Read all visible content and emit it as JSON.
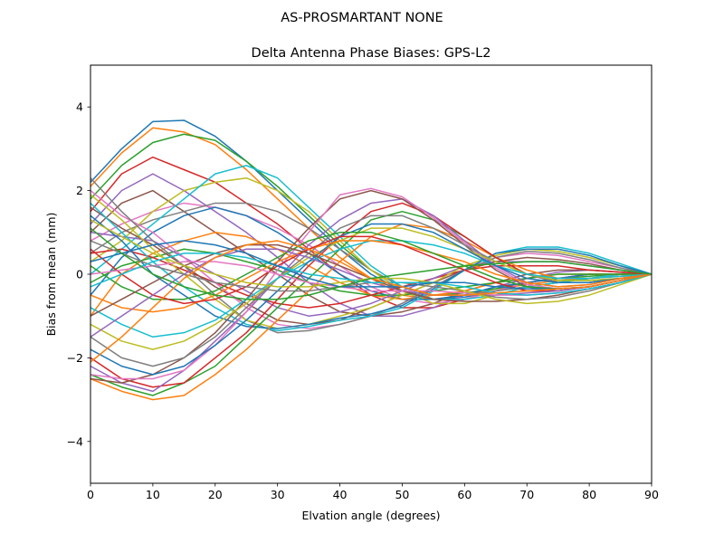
{
  "suptitle": "AS-PROSMARTANT  NONE",
  "chart_data": {
    "type": "line",
    "title": "Delta Antenna Phase Biases: GPS-L2",
    "xlabel": "Elvation angle (degrees)",
    "ylabel": "Bias from mean (mm)",
    "xlim": [
      0,
      90
    ],
    "ylim": [
      -5,
      5
    ],
    "xticks": [
      0,
      10,
      20,
      30,
      40,
      50,
      60,
      70,
      80,
      90
    ],
    "yticks": [
      -4,
      -2,
      0,
      2,
      4
    ],
    "grid": false,
    "legend": "none",
    "x": [
      0,
      5,
      10,
      15,
      20,
      25,
      30,
      35,
      40,
      45,
      50,
      55,
      60,
      65,
      70,
      75,
      80,
      85,
      90
    ],
    "series": [
      {
        "values": [
          2.2,
          3.0,
          3.65,
          3.68,
          3.3,
          2.7,
          2.0,
          1.3,
          0.6,
          0.0,
          -0.4,
          -0.6,
          -0.55,
          -0.4,
          -0.3,
          -0.2,
          -0.1,
          -0.05,
          0
        ]
      },
      {
        "values": [
          2.1,
          2.9,
          3.5,
          3.4,
          3.1,
          2.5,
          1.8,
          1.1,
          0.4,
          -0.1,
          -0.5,
          -0.6,
          -0.5,
          -0.35,
          -0.25,
          -0.15,
          -0.1,
          -0.05,
          0
        ]
      },
      {
        "values": [
          1.8,
          2.6,
          3.15,
          3.35,
          3.2,
          2.7,
          2.1,
          1.4,
          0.7,
          0.1,
          -0.3,
          -0.5,
          -0.45,
          -0.35,
          -0.2,
          -0.1,
          -0.05,
          0,
          0
        ]
      },
      {
        "values": [
          1.5,
          2.4,
          2.8,
          2.5,
          2.2,
          1.7,
          1.2,
          0.6,
          0.0,
          -0.5,
          -0.8,
          -0.8,
          -0.6,
          -0.4,
          -0.2,
          -0.1,
          0.0,
          0.0,
          0
        ]
      },
      {
        "values": [
          1.2,
          2.0,
          2.4,
          2.0,
          1.5,
          1.0,
          0.4,
          -0.2,
          -0.7,
          -1.0,
          -1.0,
          -0.8,
          -0.5,
          -0.3,
          -0.1,
          0.05,
          0.1,
          0.05,
          0
        ]
      },
      {
        "values": [
          1.0,
          1.7,
          2.0,
          1.5,
          1.0,
          0.5,
          0.0,
          -0.5,
          -0.9,
          -1.0,
          -0.9,
          -0.7,
          -0.4,
          -0.2,
          0.0,
          0.1,
          0.1,
          0.05,
          0
        ]
      },
      {
        "values": [
          0.8,
          1.2,
          1.5,
          1.7,
          1.6,
          1.4,
          1.1,
          0.7,
          0.2,
          -0.3,
          -0.6,
          -0.7,
          -0.6,
          -0.4,
          -0.2,
          -0.1,
          0.0,
          0.0,
          0
        ]
      },
      {
        "values": [
          0.5,
          1.0,
          1.3,
          1.5,
          1.7,
          1.7,
          1.5,
          1.1,
          0.6,
          0.1,
          -0.3,
          -0.5,
          -0.5,
          -0.4,
          -0.3,
          -0.2,
          -0.1,
          0.0,
          0
        ]
      },
      {
        "values": [
          0.3,
          0.8,
          1.5,
          2.0,
          2.2,
          2.3,
          2.0,
          1.5,
          0.8,
          0.1,
          -0.4,
          -0.7,
          -0.7,
          -0.5,
          -0.3,
          -0.2,
          -0.1,
          0.0,
          0
        ]
      },
      {
        "values": [
          0.0,
          0.6,
          1.2,
          1.8,
          2.4,
          2.6,
          2.3,
          1.6,
          0.9,
          0.2,
          -0.3,
          -0.6,
          -0.6,
          -0.5,
          -0.3,
          -0.2,
          -0.1,
          0.0,
          0
        ]
      },
      {
        "values": [
          -0.5,
          0.4,
          1.0,
          1.4,
          1.6,
          1.4,
          1.0,
          0.5,
          0.0,
          -0.4,
          -0.6,
          -0.6,
          -0.5,
          -0.3,
          -0.2,
          -0.1,
          0.0,
          0.0,
          0
        ]
      },
      {
        "values": [
          -1.0,
          0.0,
          0.5,
          0.8,
          1.0,
          0.9,
          0.6,
          0.2,
          -0.2,
          -0.5,
          -0.6,
          -0.5,
          -0.4,
          -0.2,
          -0.1,
          0.0,
          0.0,
          0.0,
          0
        ]
      },
      {
        "values": [
          -0.2,
          0.2,
          0.4,
          0.6,
          0.5,
          0.3,
          0.1,
          -0.2,
          -0.4,
          -0.5,
          -0.5,
          -0.4,
          -0.3,
          -0.2,
          -0.1,
          0.0,
          0.0,
          0.0,
          0
        ]
      },
      {
        "values": [
          0.5,
          0.6,
          0.4,
          0.1,
          -0.2,
          -0.5,
          -0.7,
          -0.8,
          -0.7,
          -0.5,
          -0.3,
          -0.1,
          0.1,
          0.2,
          0.2,
          0.2,
          0.1,
          0.05,
          0
        ]
      },
      {
        "values": [
          1.0,
          0.9,
          0.8,
          0.4,
          0.0,
          -0.4,
          -0.8,
          -1.0,
          -0.9,
          -0.7,
          -0.4,
          -0.1,
          0.2,
          0.3,
          0.3,
          0.3,
          0.2,
          0.1,
          0
        ]
      },
      {
        "values": [
          1.6,
          1.1,
          0.7,
          0.2,
          -0.3,
          -0.7,
          -1.1,
          -1.2,
          -1.1,
          -0.8,
          -0.5,
          -0.2,
          0.1,
          0.3,
          0.4,
          0.35,
          0.25,
          0.1,
          0
        ]
      },
      {
        "values": [
          2.0,
          1.4,
          1.0,
          0.4,
          -0.2,
          -0.8,
          -1.2,
          -1.3,
          -1.2,
          -1.0,
          -0.7,
          -0.3,
          0.1,
          0.4,
          0.5,
          0.45,
          0.3,
          0.15,
          0
        ]
      },
      {
        "values": [
          2.3,
          1.5,
          0.8,
          0.2,
          -0.5,
          -1.1,
          -1.4,
          -1.35,
          -1.2,
          -1.0,
          -0.7,
          -0.3,
          0.1,
          0.4,
          0.55,
          0.5,
          0.35,
          0.15,
          0
        ]
      },
      {
        "values": [
          1.9,
          1.3,
          0.6,
          0.0,
          -0.6,
          -1.1,
          -1.3,
          -1.2,
          -1.0,
          -0.8,
          -0.5,
          -0.2,
          0.2,
          0.45,
          0.6,
          0.55,
          0.4,
          0.2,
          0
        ]
      },
      {
        "values": [
          1.7,
          1.0,
          0.3,
          -0.3,
          -0.8,
          -1.2,
          -1.35,
          -1.25,
          -1.1,
          -1.0,
          -0.8,
          -0.4,
          0.1,
          0.5,
          0.65,
          0.65,
          0.5,
          0.25,
          0
        ]
      },
      {
        "values": [
          1.4,
          0.8,
          0.0,
          -0.5,
          -1.0,
          -1.25,
          -1.3,
          -1.2,
          -1.05,
          -0.95,
          -0.75,
          -0.35,
          0.1,
          0.5,
          0.6,
          0.6,
          0.45,
          0.2,
          0
        ]
      },
      {
        "values": [
          -2.5,
          -2.8,
          -3.0,
          -2.9,
          -2.4,
          -1.8,
          -1.1,
          -0.4,
          0.3,
          0.9,
          1.2,
          1.1,
          0.8,
          0.4,
          0.1,
          -0.1,
          -0.1,
          -0.05,
          0
        ]
      },
      {
        "values": [
          -2.4,
          -2.7,
          -2.9,
          -2.6,
          -2.2,
          -1.5,
          -0.8,
          -0.1,
          0.6,
          1.3,
          1.5,
          1.3,
          0.9,
          0.4,
          0.0,
          -0.15,
          -0.15,
          -0.1,
          0
        ]
      },
      {
        "values": [
          -2.0,
          -2.5,
          -2.7,
          -2.6,
          -2.0,
          -1.4,
          -0.6,
          0.2,
          0.9,
          1.5,
          1.7,
          1.4,
          0.9,
          0.4,
          0.0,
          -0.2,
          -0.2,
          -0.1,
          0
        ]
      },
      {
        "values": [
          -2.2,
          -2.6,
          -2.8,
          -2.3,
          -1.6,
          -0.9,
          -0.1,
          0.7,
          1.3,
          1.7,
          1.8,
          1.4,
          0.8,
          0.2,
          -0.2,
          -0.3,
          -0.25,
          -0.1,
          0
        ]
      },
      {
        "values": [
          -2.5,
          -2.6,
          -2.4,
          -2.0,
          -1.4,
          -0.6,
          0.3,
          1.1,
          1.8,
          2.0,
          1.8,
          1.3,
          0.7,
          0.1,
          -0.3,
          -0.4,
          -0.3,
          -0.15,
          0
        ]
      },
      {
        "values": [
          -2.4,
          -2.5,
          -2.5,
          -2.3,
          -1.7,
          -0.9,
          0.1,
          1.0,
          1.9,
          2.05,
          1.85,
          1.35,
          0.75,
          0.15,
          -0.25,
          -0.35,
          -0.3,
          -0.15,
          0
        ]
      },
      {
        "values": [
          -1.5,
          -2.0,
          -2.2,
          -2.0,
          -1.5,
          -0.8,
          -0.1,
          0.5,
          1.1,
          1.4,
          1.4,
          1.1,
          0.7,
          0.3,
          0.0,
          -0.2,
          -0.2,
          -0.1,
          0
        ]
      },
      {
        "values": [
          -1.2,
          -1.6,
          -1.8,
          -1.6,
          -1.2,
          -0.7,
          -0.1,
          0.4,
          0.8,
          1.1,
          1.1,
          0.9,
          0.6,
          0.3,
          0.0,
          -0.15,
          -0.15,
          -0.1,
          0
        ]
      },
      {
        "values": [
          -0.8,
          -1.2,
          -1.5,
          -1.4,
          -1.1,
          -0.6,
          -0.1,
          0.3,
          0.6,
          0.8,
          0.8,
          0.7,
          0.5,
          0.2,
          0.0,
          -0.1,
          -0.1,
          -0.05,
          0
        ]
      },
      {
        "values": [
          -1.8,
          -2.2,
          -2.4,
          -2.2,
          -1.7,
          -1.1,
          -0.4,
          0.3,
          0.9,
          1.2,
          1.2,
          1.0,
          0.6,
          0.2,
          -0.1,
          -0.2,
          -0.2,
          -0.1,
          0
        ]
      },
      {
        "values": [
          -0.5,
          -0.8,
          -0.9,
          -0.8,
          -0.5,
          -0.1,
          0.3,
          0.6,
          0.8,
          0.8,
          0.7,
          0.5,
          0.3,
          0.0,
          -0.2,
          -0.3,
          -0.25,
          -0.1,
          0
        ]
      },
      {
        "values": [
          0.2,
          -0.3,
          -0.6,
          -0.6,
          -0.4,
          0.0,
          0.4,
          0.8,
          1.0,
          1.0,
          0.8,
          0.5,
          0.2,
          -0.1,
          -0.3,
          -0.35,
          -0.3,
          -0.15,
          0
        ]
      },
      {
        "values": [
          0.6,
          0.0,
          -0.5,
          -0.7,
          -0.6,
          -0.3,
          0.2,
          0.6,
          0.9,
          0.9,
          0.7,
          0.4,
          0.1,
          -0.2,
          -0.4,
          -0.4,
          -0.3,
          -0.15,
          0
        ]
      },
      {
        "values": [
          -1.5,
          -1.0,
          -0.5,
          0.0,
          0.4,
          0.6,
          0.6,
          0.4,
          0.1,
          -0.2,
          -0.4,
          -0.5,
          -0.5,
          -0.5,
          -0.45,
          -0.4,
          -0.3,
          -0.15,
          0
        ]
      },
      {
        "values": [
          -1.0,
          -0.6,
          -0.2,
          0.2,
          0.5,
          0.7,
          0.7,
          0.5,
          0.2,
          -0.1,
          -0.4,
          -0.6,
          -0.65,
          -0.65,
          -0.6,
          -0.5,
          -0.35,
          -0.2,
          0
        ]
      },
      {
        "values": [
          0.0,
          0.1,
          0.2,
          0.3,
          0.3,
          0.2,
          0.0,
          -0.2,
          -0.3,
          -0.4,
          -0.4,
          -0.4,
          -0.45,
          -0.5,
          -0.5,
          -0.45,
          -0.35,
          -0.2,
          0
        ]
      },
      {
        "values": [
          0.8,
          0.5,
          0.2,
          0.0,
          -0.2,
          -0.3,
          -0.4,
          -0.4,
          -0.3,
          -0.2,
          -0.2,
          -0.3,
          -0.4,
          -0.55,
          -0.6,
          -0.55,
          -0.4,
          -0.2,
          0
        ]
      },
      {
        "values": [
          1.3,
          0.9,
          0.5,
          0.2,
          0.0,
          -0.2,
          -0.3,
          -0.3,
          -0.2,
          -0.1,
          -0.1,
          -0.2,
          -0.4,
          -0.6,
          -0.7,
          -0.65,
          -0.5,
          -0.25,
          0
        ]
      },
      {
        "values": [
          -0.3,
          0.0,
          0.3,
          0.5,
          0.5,
          0.4,
          0.2,
          0.0,
          -0.1,
          -0.2,
          -0.2,
          -0.2,
          -0.3,
          -0.45,
          -0.5,
          -0.45,
          -0.35,
          -0.2,
          0
        ]
      },
      {
        "values": [
          0.3,
          0.5,
          0.7,
          0.8,
          0.7,
          0.5,
          0.2,
          -0.1,
          -0.3,
          -0.3,
          -0.3,
          -0.2,
          -0.2,
          -0.3,
          -0.35,
          -0.35,
          -0.3,
          -0.15,
          0
        ]
      },
      {
        "values": [
          -2.1,
          -1.5,
          -0.8,
          -0.1,
          0.4,
          0.7,
          0.8,
          0.6,
          0.3,
          -0.1,
          -0.3,
          -0.5,
          -0.5,
          -0.45,
          -0.4,
          -0.35,
          -0.3,
          -0.15,
          0
        ]
      },
      {
        "values": [
          1.1,
          0.5,
          0.0,
          -0.3,
          -0.5,
          -0.6,
          -0.6,
          -0.5,
          -0.3,
          -0.1,
          0.0,
          0.1,
          0.2,
          0.25,
          0.3,
          0.3,
          0.2,
          0.1,
          0
        ]
      }
    ]
  }
}
